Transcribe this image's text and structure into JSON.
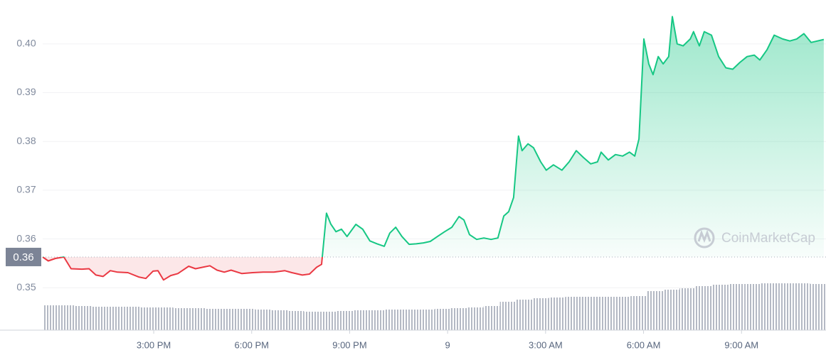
{
  "chart_data": {
    "type": "line",
    "x": [
      11.6,
      11.77,
      11.99,
      12.25,
      12.47,
      12.8,
      13.02,
      13.23,
      13.45,
      13.67,
      13.89,
      14.21,
      14.54,
      14.76,
      14.98,
      15.13,
      15.3,
      15.52,
      15.74,
      16.07,
      16.28,
      16.5,
      16.72,
      16.94,
      17.16,
      17.37,
      17.7,
      18.03,
      18.35,
      18.68,
      19.01,
      19.23,
      19.55,
      19.77,
      19.99,
      20.14,
      20.29,
      20.42,
      20.58,
      20.75,
      20.92,
      21.19,
      21.4,
      21.62,
      21.84,
      22.06,
      22.23,
      22.41,
      22.6,
      22.82,
      23.04,
      23.26,
      23.47,
      23.69,
      23.91,
      24.13,
      24.35,
      24.5,
      24.67,
      24.89,
      25.11,
      25.33,
      25.54,
      25.72,
      25.87,
      26.02,
      26.17,
      26.28,
      26.46,
      26.63,
      26.85,
      27.02,
      27.24,
      27.5,
      27.72,
      27.94,
      28.16,
      28.38,
      28.59,
      28.7,
      28.92,
      29.14,
      29.36,
      29.57,
      29.73,
      29.86,
      30.01,
      30.16,
      30.29,
      30.45,
      30.6,
      30.77,
      30.88,
      31.03,
      31.21,
      31.43,
      31.53,
      31.71,
      31.86,
      32.08,
      32.3,
      32.52,
      32.73,
      32.95,
      33.17,
      33.39,
      33.56,
      33.78,
      34.0,
      34.26,
      34.48,
      34.69,
      34.91,
      35.13,
      35.52
    ],
    "values": [
      0.3563,
      0.3555,
      0.356,
      0.3563,
      0.3539,
      0.3538,
      0.3539,
      0.3526,
      0.3523,
      0.3535,
      0.3532,
      0.3531,
      0.3522,
      0.3519,
      0.3534,
      0.3535,
      0.3516,
      0.3525,
      0.3529,
      0.3544,
      0.3539,
      0.3542,
      0.3545,
      0.3536,
      0.3532,
      0.3536,
      0.3529,
      0.3531,
      0.3532,
      0.3532,
      0.3535,
      0.3531,
      0.3526,
      0.3528,
      0.3542,
      0.3548,
      0.3653,
      0.3631,
      0.3615,
      0.362,
      0.3605,
      0.363,
      0.362,
      0.3596,
      0.359,
      0.3585,
      0.3612,
      0.3624,
      0.3605,
      0.3589,
      0.359,
      0.3592,
      0.3595,
      0.3605,
      0.3615,
      0.3624,
      0.3646,
      0.3639,
      0.3609,
      0.3599,
      0.3602,
      0.3599,
      0.3602,
      0.3647,
      0.3656,
      0.3685,
      0.3811,
      0.3781,
      0.3795,
      0.3787,
      0.3758,
      0.3741,
      0.3752,
      0.3741,
      0.3758,
      0.3781,
      0.3767,
      0.3754,
      0.3758,
      0.3778,
      0.3762,
      0.3773,
      0.377,
      0.3778,
      0.377,
      0.3805,
      0.401,
      0.3959,
      0.3937,
      0.3974,
      0.3959,
      0.3974,
      0.4056,
      0.4,
      0.3996,
      0.401,
      0.4025,
      0.3996,
      0.4025,
      0.4018,
      0.3974,
      0.3951,
      0.3948,
      0.3962,
      0.3974,
      0.3977,
      0.3967,
      0.3988,
      0.4018,
      0.401,
      0.4006,
      0.401,
      0.4021,
      0.4003,
      0.4009
    ],
    "baseline": {
      "value": 0.3563,
      "label": "0.36"
    },
    "up_color": "#16c784",
    "down_color": "#ea3943",
    "volume_color": "#b4b9c4",
    "volume": {
      "x": [
        11.85,
        12.35,
        12.85,
        13.35,
        13.85,
        14.35,
        14.85,
        15.35,
        15.85,
        16.35,
        16.85,
        17.35,
        17.85,
        18.35,
        18.85,
        19.35,
        19.85,
        20.35,
        20.85,
        21.35,
        21.85,
        22.35,
        22.85,
        23.35,
        23.85,
        24.35,
        24.85,
        25.35,
        25.85,
        26.35,
        26.85,
        27.35,
        27.85,
        28.35,
        28.85,
        29.35,
        29.85,
        30.35,
        30.85,
        31.35,
        31.85,
        32.35,
        32.85,
        33.35,
        33.85,
        34.35,
        34.85,
        35.35
      ],
      "values": [
        35,
        35,
        34,
        33,
        33,
        33,
        32,
        32,
        31,
        31,
        30,
        30,
        30,
        29,
        28,
        27,
        26,
        26,
        27,
        28,
        28,
        29,
        29,
        29,
        30,
        31,
        32,
        34,
        40,
        43,
        45,
        46,
        47,
        47,
        47,
        47,
        48,
        55,
        57,
        59,
        62,
        64,
        65,
        65,
        66,
        66,
        66,
        65
      ]
    },
    "xlim": [
      11.6,
      35.6
    ],
    "xticks": [
      {
        "value": 15,
        "label": "3:00 PM"
      },
      {
        "value": 18,
        "label": "6:00 PM"
      },
      {
        "value": 21,
        "label": "9:00 PM"
      },
      {
        "value": 24,
        "label": "9"
      },
      {
        "value": 27,
        "label": "3:00 AM"
      },
      {
        "value": 30,
        "label": "6:00 AM"
      },
      {
        "value": 33,
        "label": "9:00 AM"
      }
    ],
    "ylim": [
      0.3413,
      0.409
    ],
    "yticks": [
      {
        "value": 0.35,
        "label": "0.35"
      },
      {
        "value": 0.36,
        "label": "0.36"
      },
      {
        "value": 0.37,
        "label": "0.37"
      },
      {
        "value": 0.38,
        "label": "0.38"
      },
      {
        "value": 0.39,
        "label": "0.39"
      },
      {
        "value": 0.4,
        "label": "0.40"
      }
    ],
    "grid": true,
    "watermark": "CoinMarketCap"
  }
}
